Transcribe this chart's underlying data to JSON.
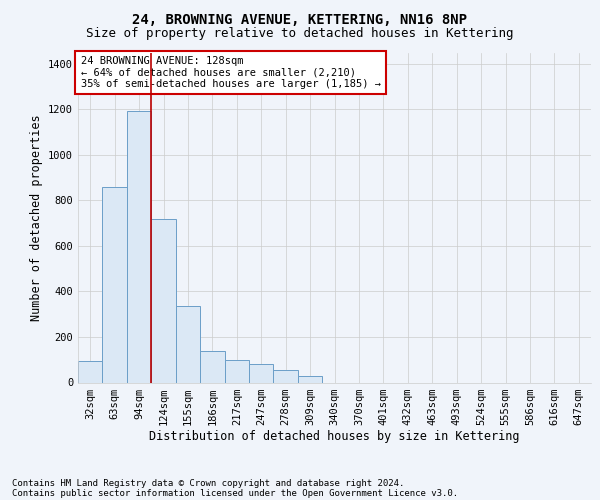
{
  "title": "24, BROWNING AVENUE, KETTERING, NN16 8NP",
  "subtitle": "Size of property relative to detached houses in Kettering",
  "xlabel": "Distribution of detached houses by size in Kettering",
  "ylabel": "Number of detached properties",
  "categories": [
    "32sqm",
    "63sqm",
    "94sqm",
    "124sqm",
    "155sqm",
    "186sqm",
    "217sqm",
    "247sqm",
    "278sqm",
    "309sqm",
    "340sqm",
    "370sqm",
    "401sqm",
    "432sqm",
    "463sqm",
    "493sqm",
    "524sqm",
    "555sqm",
    "586sqm",
    "616sqm",
    "647sqm"
  ],
  "values": [
    95,
    860,
    1195,
    720,
    335,
    140,
    100,
    80,
    55,
    30,
    0,
    0,
    0,
    0,
    0,
    0,
    0,
    0,
    0,
    0,
    0
  ],
  "bar_color": "#dbe8f5",
  "bar_edge_color": "#6b9ec8",
  "annotation_box_text": "24 BROWNING AVENUE: 128sqm\n← 64% of detached houses are smaller (2,210)\n35% of semi-detached houses are larger (1,185) →",
  "box_color": "#ffffff",
  "box_edge_color": "#cc0000",
  "vline_color": "#bb0000",
  "vline_x": 2.5,
  "ylim": [
    0,
    1450
  ],
  "yticks": [
    0,
    200,
    400,
    600,
    800,
    1000,
    1200,
    1400
  ],
  "plot_bg_color": "#f0f4fa",
  "fig_bg_color": "#f0f4fa",
  "footer_line1": "Contains HM Land Registry data © Crown copyright and database right 2024.",
  "footer_line2": "Contains public sector information licensed under the Open Government Licence v3.0.",
  "title_fontsize": 10,
  "subtitle_fontsize": 9,
  "xlabel_fontsize": 8.5,
  "ylabel_fontsize": 8.5,
  "tick_fontsize": 7.5,
  "annotation_fontsize": 7.5,
  "footer_fontsize": 6.5
}
